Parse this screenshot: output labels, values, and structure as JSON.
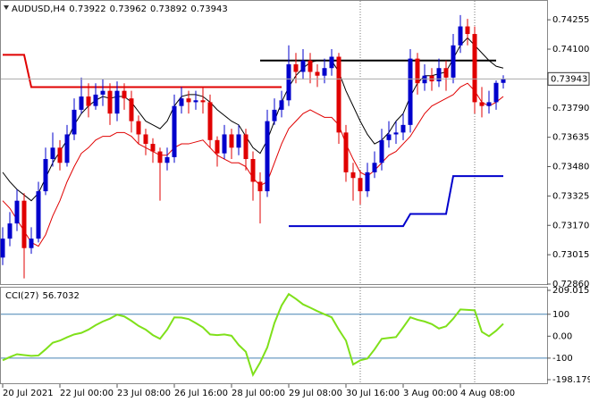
{
  "chart_data": [
    {
      "type": "candlestick",
      "title": "AUDUSD,H4",
      "categories": [
        "20 Jul 2021",
        null,
        null,
        null,
        null,
        null,
        null,
        null,
        "22 Jul 00:00",
        null,
        null,
        null,
        null,
        null,
        null,
        null,
        "23 Jul 08:00",
        null,
        null,
        null,
        null,
        null,
        null,
        null,
        "26 Jul 16:00",
        null,
        null,
        null,
        null,
        null,
        null,
        null,
        "28 Jul 00:00",
        null,
        null,
        null,
        null,
        null,
        null,
        null,
        "29 Jul 08:00",
        null,
        null,
        null,
        null,
        null,
        null,
        null,
        "30 Jul 16:00",
        null,
        null,
        null,
        null,
        null,
        null,
        null,
        "3 Aug 00:00",
        null,
        null,
        null,
        null,
        null,
        null,
        null,
        "4 Aug 08:00",
        null,
        null,
        null,
        null,
        null,
        null
      ],
      "open": [
        0.73,
        0.731,
        0.7318,
        0.733,
        0.7305,
        0.731,
        0.7335,
        0.7352,
        0.7358,
        0.735,
        0.7365,
        0.7378,
        0.7385,
        0.738,
        0.7386,
        0.7388,
        0.7376,
        0.7388,
        0.7384,
        0.7372,
        0.7365,
        0.736,
        0.7356,
        0.735,
        0.7353,
        0.738,
        0.7384,
        0.7382,
        0.7383,
        0.7382,
        0.7362,
        0.7355,
        0.7365,
        0.7358,
        0.7365,
        0.7352,
        0.734,
        0.7335,
        0.7372,
        0.7378,
        0.7383,
        0.7402,
        0.7398,
        0.7404,
        0.7398,
        0.7396,
        0.74,
        0.7406,
        0.7366,
        0.7345,
        0.7342,
        0.7335,
        0.7345,
        0.735,
        0.7362,
        0.7365,
        0.7366,
        0.737,
        0.7405,
        0.7392,
        0.7396,
        0.7393,
        0.74,
        0.7395,
        0.7412,
        0.7422,
        0.7418,
        0.7382,
        0.738,
        0.7382,
        0.73922
      ],
      "high": [
        0.7316,
        0.7324,
        0.7336,
        0.7334,
        0.7316,
        0.734,
        0.7358,
        0.7366,
        0.7362,
        0.737,
        0.7384,
        0.7395,
        0.7392,
        0.7392,
        0.7394,
        0.7392,
        0.7393,
        0.7392,
        0.7388,
        0.7375,
        0.7368,
        0.7363,
        0.7358,
        0.7358,
        0.7386,
        0.739,
        0.7388,
        0.7388,
        0.739,
        0.7386,
        0.7364,
        0.737,
        0.7368,
        0.737,
        0.7368,
        0.7356,
        0.7345,
        0.7378,
        0.7384,
        0.7388,
        0.7412,
        0.7408,
        0.741,
        0.7408,
        0.7402,
        0.7405,
        0.741,
        0.7408,
        0.737,
        0.735,
        0.7346,
        0.735,
        0.7356,
        0.7368,
        0.7372,
        0.7372,
        0.7376,
        0.741,
        0.7408,
        0.7402,
        0.74,
        0.7405,
        0.7404,
        0.7418,
        0.7428,
        0.7426,
        0.7422,
        0.739,
        0.7388,
        0.73935,
        0.73962
      ],
      "low": [
        0.7296,
        0.7306,
        0.7314,
        0.7289,
        0.7302,
        0.7308,
        0.7333,
        0.7348,
        0.7346,
        0.7348,
        0.7362,
        0.7376,
        0.7374,
        0.7378,
        0.738,
        0.737,
        0.7372,
        0.7378,
        0.7366,
        0.736,
        0.7354,
        0.735,
        0.733,
        0.7346,
        0.735,
        0.7376,
        0.7376,
        0.7378,
        0.7376,
        0.7358,
        0.7348,
        0.7352,
        0.7352,
        0.7354,
        0.7346,
        0.733,
        0.7318,
        0.7332,
        0.737,
        0.7374,
        0.738,
        0.7392,
        0.7394,
        0.7392,
        0.739,
        0.7392,
        0.7396,
        0.736,
        0.734,
        0.733,
        0.7328,
        0.7332,
        0.7342,
        0.7346,
        0.7358,
        0.736,
        0.7362,
        0.7366,
        0.7386,
        0.7388,
        0.7388,
        0.739,
        0.7388,
        0.7392,
        0.7408,
        0.7412,
        0.7376,
        0.7374,
        0.7376,
        0.7378,
        0.73892
      ],
      "close": [
        0.731,
        0.7318,
        0.733,
        0.7305,
        0.731,
        0.7335,
        0.7352,
        0.7358,
        0.735,
        0.7365,
        0.7378,
        0.7385,
        0.738,
        0.7386,
        0.7388,
        0.7376,
        0.7388,
        0.7384,
        0.7372,
        0.7365,
        0.736,
        0.7356,
        0.735,
        0.7353,
        0.738,
        0.7384,
        0.7382,
        0.7383,
        0.7382,
        0.7362,
        0.7355,
        0.7365,
        0.7358,
        0.7365,
        0.7352,
        0.734,
        0.7335,
        0.7372,
        0.7378,
        0.7383,
        0.7402,
        0.7398,
        0.7404,
        0.7398,
        0.7396,
        0.74,
        0.7406,
        0.7366,
        0.7345,
        0.7342,
        0.7335,
        0.7345,
        0.735,
        0.7362,
        0.7365,
        0.7366,
        0.737,
        0.7405,
        0.7392,
        0.7396,
        0.7393,
        0.74,
        0.7395,
        0.7412,
        0.7422,
        0.7418,
        0.7382,
        0.738,
        0.7382,
        0.73922,
        0.73943
      ],
      "up_color": "#0000cc",
      "down_color": "#e00000",
      "series": [
        {
          "color": "#000000",
          "width": 1,
          "values": [
            0.7345,
            0.734,
            0.7336,
            0.7333,
            0.733,
            0.7334,
            0.7342,
            0.735,
            0.7356,
            0.7362,
            0.737,
            0.7376,
            0.738,
            0.7383,
            0.7385,
            0.7384,
            0.7385,
            0.7385,
            0.7382,
            0.7377,
            0.7372,
            0.737,
            0.7368,
            0.7372,
            0.738,
            0.7385,
            0.7386,
            0.7386,
            0.7385,
            0.7382,
            0.7378,
            0.7375,
            0.7372,
            0.737,
            0.7364,
            0.7358,
            0.7355,
            0.7362,
            0.7372,
            0.7382,
            0.739,
            0.7396,
            0.74,
            0.7403,
            0.7404,
            0.7404,
            0.7404,
            0.7398,
            0.7388,
            0.738,
            0.7372,
            0.7365,
            0.736,
            0.7362,
            0.7366,
            0.7372,
            0.7376,
            0.7385,
            0.7392,
            0.7396,
            0.7396,
            0.7397,
            0.7398,
            0.7405,
            0.7412,
            0.7416,
            0.7412,
            0.7408,
            0.7404,
            0.7401,
            0.74
          ]
        },
        {
          "color": "#e00000",
          "width": 1,
          "values": [
            0.733,
            0.7326,
            0.732,
            0.7314,
            0.7308,
            0.7306,
            0.7312,
            0.7322,
            0.733,
            0.734,
            0.7348,
            0.7355,
            0.7358,
            0.7362,
            0.7364,
            0.7364,
            0.7366,
            0.7366,
            0.7364,
            0.736,
            0.7358,
            0.7356,
            0.7354,
            0.7354,
            0.7358,
            0.736,
            0.736,
            0.7361,
            0.7362,
            0.7358,
            0.7354,
            0.7352,
            0.735,
            0.735,
            0.7348,
            0.7342,
            0.7338,
            0.734,
            0.735,
            0.736,
            0.7368,
            0.7372,
            0.7376,
            0.7378,
            0.7376,
            0.7374,
            0.7374,
            0.737,
            0.736,
            0.7352,
            0.7345,
            0.7343,
            0.7346,
            0.735,
            0.7354,
            0.7356,
            0.736,
            0.7364,
            0.737,
            0.7376,
            0.738,
            0.7382,
            0.7384,
            0.7386,
            0.739,
            0.7392,
            0.7388,
            0.7382,
            0.738,
            0.7382,
            0.7385
          ]
        },
        {
          "color": "#e00000",
          "width": 2,
          "values": [
            0.7407,
            0.7407,
            0.7407,
            0.7407,
            0.739,
            0.739,
            0.739,
            0.739,
            0.739,
            0.739,
            0.739,
            0.739,
            0.739,
            0.739,
            0.739,
            0.739,
            0.739,
            0.739,
            0.739,
            0.739,
            0.739,
            0.739,
            0.739,
            0.739,
            0.739,
            0.739,
            0.739,
            0.739,
            0.739,
            0.739,
            0.739,
            0.739,
            0.739,
            0.739,
            0.739,
            0.739,
            0.739,
            0.739,
            0.739,
            0.739,
            null,
            null,
            null,
            null,
            null,
            null,
            null,
            null,
            null,
            null,
            null,
            null,
            null,
            null,
            null,
            null,
            null,
            null,
            null,
            null,
            null,
            null,
            null,
            null,
            null,
            null,
            null,
            null,
            null,
            null,
            null
          ]
        },
        {
          "color": "#000000",
          "width": 2,
          "values": [
            null,
            null,
            null,
            null,
            null,
            null,
            null,
            null,
            null,
            null,
            null,
            null,
            null,
            null,
            null,
            null,
            null,
            null,
            null,
            null,
            null,
            null,
            null,
            null,
            null,
            null,
            null,
            null,
            null,
            null,
            null,
            null,
            null,
            null,
            null,
            null,
            0.7404,
            0.7404,
            0.7404,
            0.7404,
            0.7404,
            0.7404,
            0.7404,
            0.7404,
            0.7404,
            0.7404,
            0.7404,
            0.7404,
            0.7404,
            0.7404,
            0.7404,
            0.7404,
            0.7404,
            0.7404,
            0.7404,
            0.7404,
            0.7404,
            0.7404,
            0.7404,
            0.7404,
            0.7404,
            0.7404,
            0.7404,
            0.7404,
            0.7404,
            0.7404,
            0.7404,
            0.7404,
            0.7404,
            0.7404,
            null
          ]
        },
        {
          "color": "#0000cc",
          "width": 2,
          "values": [
            null,
            null,
            null,
            null,
            null,
            null,
            null,
            null,
            null,
            null,
            null,
            null,
            null,
            null,
            null,
            null,
            null,
            null,
            null,
            null,
            null,
            null,
            null,
            null,
            null,
            null,
            null,
            null,
            null,
            null,
            null,
            null,
            null,
            null,
            null,
            null,
            null,
            null,
            null,
            null,
            0.73166,
            0.73166,
            0.73166,
            0.73166,
            0.73166,
            0.73166,
            0.73166,
            0.73166,
            0.73166,
            0.73166,
            0.73166,
            0.73166,
            0.73166,
            0.73166,
            0.73166,
            0.73166,
            0.73166,
            0.7323,
            0.7323,
            0.7323,
            0.7323,
            0.7323,
            0.7323,
            0.7343,
            0.7343,
            0.7343,
            0.7343,
            0.7343,
            0.7343,
            0.7343,
            0.7343
          ]
        }
      ],
      "ylim": [
        0.7286,
        0.7435
      ],
      "yticks": [
        0.74255,
        {
          "value": 0.741,
          "label": "0.74100"
        },
        {
          "value": 0.7379,
          "label": "0.73790"
        },
        0.73635,
        {
          "value": 0.7348,
          "label": "0.73480"
        },
        0.73325,
        {
          "value": 0.7317,
          "label": "0.73170"
        },
        0.73015,
        {
          "value": 0.7286,
          "label": "0.72860"
        }
      ]
    },
    {
      "type": "line",
      "title": "CCI(27)",
      "series": [
        {
          "color": "#7fe01a",
          "width": 2,
          "values": [
            -110,
            -95,
            -82,
            -86,
            -90,
            -88,
            -60,
            -30,
            -20,
            -5,
            8,
            15,
            30,
            50,
            67,
            80,
            98,
            90,
            70,
            47,
            30,
            5,
            -12,
            30,
            86,
            85,
            78,
            60,
            40,
            8,
            5,
            8,
            2,
            -40,
            -71,
            -176,
            -120,
            -51,
            60,
            140,
            192,
            170,
            145,
            130,
            114,
            100,
            86,
            30,
            -20,
            -129,
            -110,
            -102,
            -60,
            -12,
            -8,
            -4,
            40,
            86,
            75,
            67,
            55,
            35,
            45,
            80,
            122,
            120,
            118,
            20,
            0,
            25,
            56.7032
          ]
        }
      ],
      "levels": [
        100,
        -100
      ],
      "level_color": "#4682b4",
      "ylim": [
        -198.1793,
        209.0151
      ],
      "yticks": [
        209.0151,
        100,
        {
          "value": 0,
          "label": "0.00"
        },
        -100,
        -198.1793
      ]
    }
  ]
}
